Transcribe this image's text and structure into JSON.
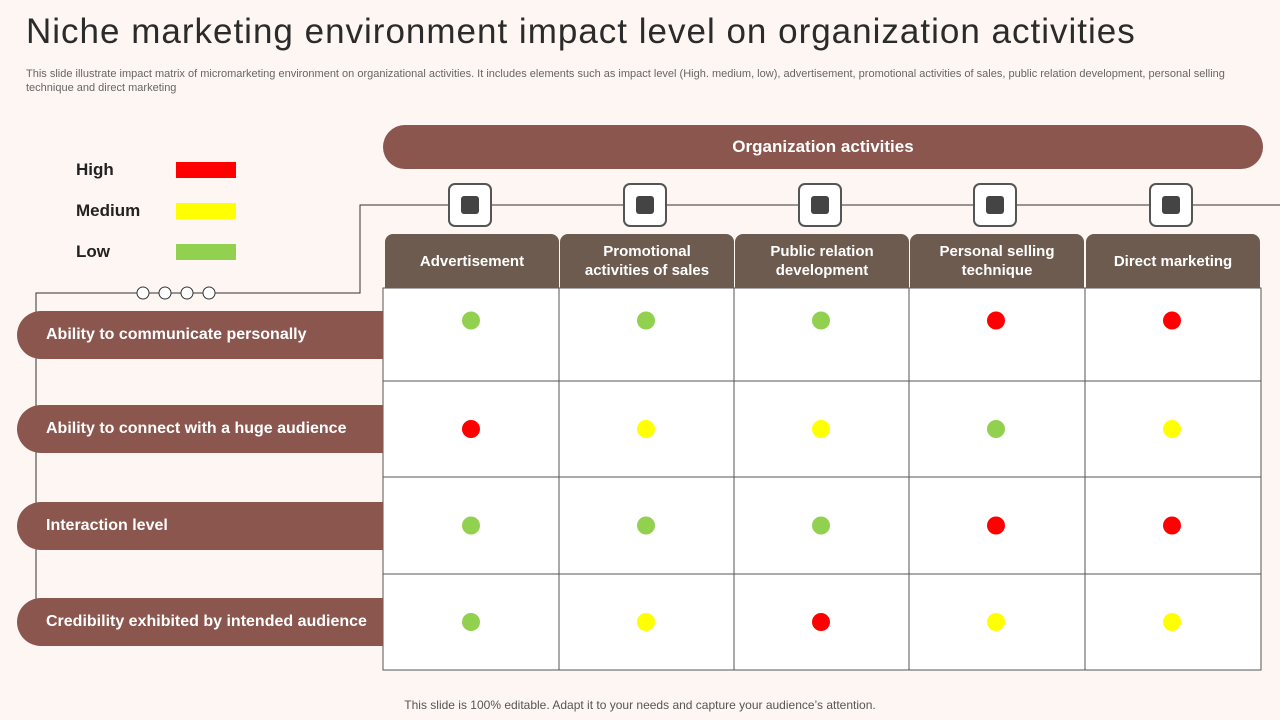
{
  "title": "Niche marketing environment impact level on organization activities",
  "subtitle": "This slide illustrate impact matrix of micromarketing environment on organizational activities. It includes elements such as impact level (High. medium, low), advertisement, promotional activities of sales, public relation development, personal selling technique and direct marketing",
  "legend": [
    {
      "label": "High",
      "color": "#ff0000"
    },
    {
      "label": "Medium",
      "color": "#ffff00"
    },
    {
      "label": "Low",
      "color": "#92d050"
    }
  ],
  "header": "Organization activities",
  "columns": [
    "Advertisement",
    "Promotional activities of sales",
    "Public relation development",
    "Personal selling technique",
    "Direct marketing"
  ],
  "rows": [
    "Ability to communicate personally",
    "Ability to connect with a huge audience",
    "Interaction level",
    "Credibility exhibited by intended audience"
  ],
  "cells": [
    [
      "Low",
      "Low",
      "Low",
      "High",
      "High"
    ],
    [
      "High",
      "Medium",
      "Medium",
      "Low",
      "Medium"
    ],
    [
      "Low",
      "Low",
      "Low",
      "High",
      "High"
    ],
    [
      "Low",
      "Medium",
      "High",
      "Medium",
      "Medium"
    ]
  ],
  "footer": "This slide is 100% editable. Adapt it to your needs and capture your audience’s attention."
}
